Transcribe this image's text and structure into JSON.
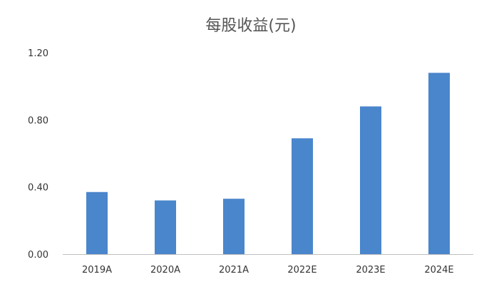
{
  "chart_data": {
    "type": "bar",
    "title": "每股收益(元)",
    "categories": [
      "2019A",
      "2020A",
      "2021A",
      "2022E",
      "2023E",
      "2024E"
    ],
    "values": [
      0.37,
      0.32,
      0.33,
      0.69,
      0.88,
      1.08
    ],
    "ylim": [
      0,
      1.2
    ],
    "yticks": [
      "0.00",
      "0.40",
      "0.80",
      "1.20"
    ],
    "ytick_values": [
      0,
      0.4,
      0.8,
      1.2
    ],
    "xlabel": "",
    "ylabel": "",
    "grid": false,
    "legend": "none",
    "bar_color": "#4a86cc",
    "axis_color": "#bfbfbf"
  }
}
